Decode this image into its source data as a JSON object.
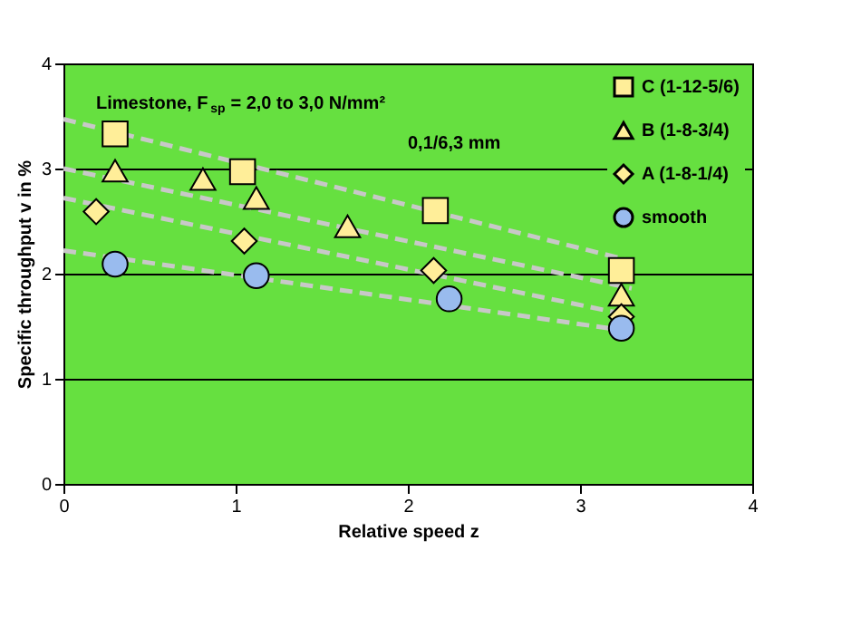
{
  "chart_data": {
    "type": "scatter",
    "xlabel": "Relative speed z",
    "ylabel": "Specific throughput v in %",
    "annotations": [
      "Limestone, F$_{sp}$ = 2,0 to 3,0 N/mm²",
      "0,1/6,3 mm"
    ],
    "xlim": [
      0,
      4
    ],
    "ylim": [
      0,
      4
    ],
    "xticks": [
      0,
      1,
      2,
      3,
      4
    ],
    "yticks": [
      0,
      1,
      2,
      3,
      4
    ],
    "grid": "y",
    "legend": "top right",
    "series": [
      {
        "type": "line",
        "color": "#c8c8c8",
        "line_style": "dashed",
        "marker": "none",
        "x": [
          0,
          3.3
        ],
        "values": [
          3.47,
          2.12
        ]
      },
      {
        "type": "line",
        "color": "#c8c8c8",
        "line_style": "dashed",
        "marker": "none",
        "x": [
          0,
          3.3
        ],
        "values": [
          3.0,
          1.86
        ]
      },
      {
        "type": "line",
        "color": "#c8c8c8",
        "line_style": "dashed",
        "marker": "none",
        "x": [
          0,
          3.3
        ],
        "values": [
          2.72,
          1.6
        ]
      },
      {
        "type": "line",
        "color": "#c8c8c8",
        "line_style": "dashed",
        "marker": "none",
        "x": [
          0,
          3.3
        ],
        "values": [
          2.22,
          1.45
        ]
      },
      {
        "name": "C (1-12-5/6)",
        "color": "#ffee99",
        "marker": "square",
        "x": [
          0.3,
          1.04,
          2.16,
          3.24
        ],
        "values": [
          3.33,
          2.97,
          2.6,
          2.03
        ]
      },
      {
        "name": "B (1-8-3/4)",
        "color": "#ffee99",
        "marker": "triangle",
        "x": [
          0.3,
          0.81,
          1.12,
          1.65,
          3.24
        ],
        "values": [
          2.98,
          2.9,
          2.72,
          2.45,
          1.8
        ]
      },
      {
        "name": "A (1-8-1/4)",
        "color": "#ffee99",
        "marker": "diamond",
        "x": [
          0.19,
          1.05,
          2.15,
          3.24
        ],
        "values": [
          2.59,
          2.31,
          2.03,
          1.59
        ]
      },
      {
        "name": "smooth",
        "color": "#99bbee",
        "marker": "circle",
        "x": [
          0.3,
          1.12,
          2.24,
          3.24
        ],
        "values": [
          2.09,
          1.98,
          1.76,
          1.48
        ]
      }
    ]
  }
}
